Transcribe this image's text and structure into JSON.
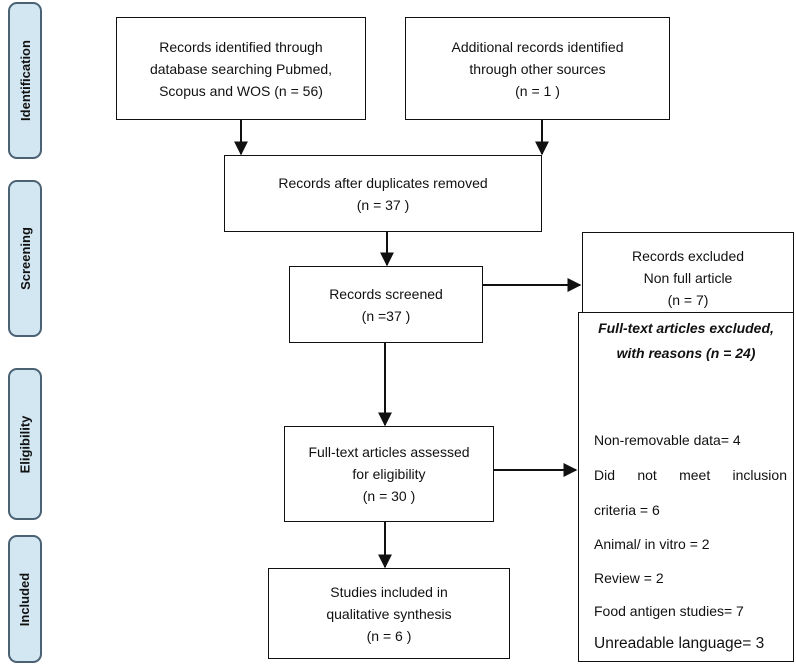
{
  "stages": [
    {
      "label": "Identification"
    },
    {
      "label": "Screening"
    },
    {
      "label": "Eligibility"
    },
    {
      "label": "Included"
    }
  ],
  "boxes": {
    "db_search": [
      "Records identified through",
      "database searching Pubmed,",
      "Scopus and WOS (n = 56)"
    ],
    "other_sources": [
      "Additional records identified",
      "through other sources",
      "(n = 1  )"
    ],
    "after_duplicates": [
      "Records after duplicates removed",
      "(n = 37   )"
    ],
    "screened": [
      "Records screened",
      "(n =37 )"
    ],
    "excluded": [
      "Records excluded",
      "Non full article",
      "(n = 7)"
    ],
    "fulltext": [
      "Full-text articles assessed",
      "for eligibility",
      "(n = 30  )"
    ],
    "included": [
      "Studies included in",
      "qualitative synthesis",
      "(n = 6 )"
    ]
  },
  "exclusion_reasons": {
    "title": [
      "Full-text articles excluded,",
      "with reasons (n = 24)"
    ],
    "items": [
      "Non-removable data= 4",
      "Did not meet inclusion",
      "criteria = 6",
      "Animal/ in vitro = 2",
      "Review = 2",
      "Food antigen studies= 7",
      "Unreadable language= 3"
    ]
  },
  "colors": {
    "stage_fill": "#d3e7f2",
    "stage_border": "#4a6274",
    "line": "#111111"
  }
}
